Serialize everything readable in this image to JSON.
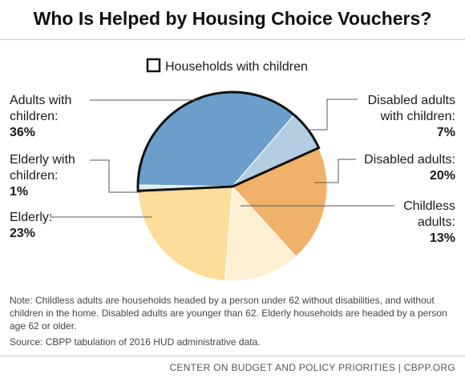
{
  "title": "Who Is Helped by Housing Choice Vouchers?",
  "chart_data": {
    "type": "pie",
    "legend": {
      "label": "Households with children",
      "placement": "top"
    },
    "slices": [
      {
        "key": "adults_children",
        "name_lines": [
          "Adults with",
          "children:"
        ],
        "value_label": "36%",
        "value": 36,
        "color": "#6b9ecb",
        "with_children": true
      },
      {
        "key": "disabled_children",
        "name_lines": [
          "Disabled adults",
          "with children:"
        ],
        "value_label": "7%",
        "value": 7,
        "color": "#b3cee3",
        "with_children": true
      },
      {
        "key": "disabled",
        "name_lines": [
          "Disabled adults:"
        ],
        "value_label": "20%",
        "value": 20,
        "color": "#f0b26a",
        "with_children": false
      },
      {
        "key": "childless",
        "name_lines": [
          "Childless",
          "adults:"
        ],
        "value_label": "13%",
        "value": 13,
        "color": "#fdefd2",
        "with_children": false
      },
      {
        "key": "elderly",
        "name_lines": [
          "Elderly:"
        ],
        "value_label": "23%",
        "value": 23,
        "color": "#fedc9a",
        "with_children": false
      },
      {
        "key": "elderly_children",
        "name_lines": [
          "Elderly with",
          "children:"
        ],
        "value_label": "1%",
        "value": 1,
        "color": "#ddeaf4",
        "with_children": true
      }
    ]
  },
  "notes": {
    "note": "Note: Childless adults are households headed by a person under 62 without disabilities, and without children in the home. Disabled adults are younger than 62.  Elderly households are headed by a person age 62 or older.",
    "source": "Source: CBPP tabulation of 2016 HUD administrative data."
  },
  "footer": "CENTER ON BUDGET AND POLICY PRIORITIES | CBPP.ORG"
}
